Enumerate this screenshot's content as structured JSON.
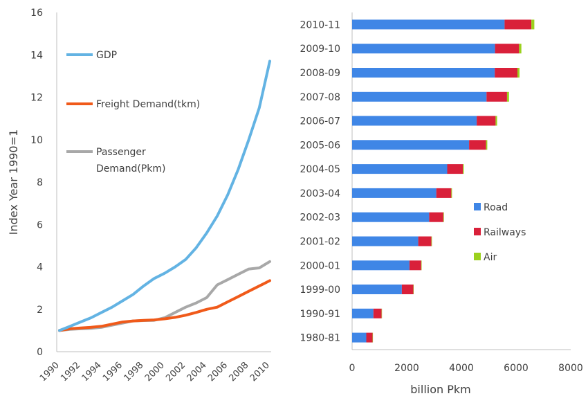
{
  "colors": {
    "gdp": "#63b3e3",
    "freight": "#f05a1a",
    "passenger": "#a8a8a8",
    "road": "#3f86e6",
    "railways": "#d9203a",
    "air": "#9bd11e",
    "axis": "#bfbfbf",
    "text": "#404040"
  },
  "chart_data": [
    {
      "type": "line",
      "ylabel": "Index Year 1990=1",
      "xlabel": "",
      "ylim": [
        0,
        16
      ],
      "xlim": [
        1990,
        2010
      ],
      "yticks": [
        "0",
        "2",
        "4",
        "6",
        "8",
        "10",
        "12",
        "14",
        "16"
      ],
      "xticks": [
        "1990",
        "1992",
        "1994",
        "1996",
        "1998",
        "2000",
        "2002",
        "2004",
        "2006",
        "2008",
        "2010"
      ],
      "legend_position": "upper-left inside",
      "series": [
        {
          "name": "GDP",
          "color_key": "gdp",
          "x": [
            1990,
            1991,
            1992,
            1993,
            1994,
            1995,
            1996,
            1997,
            1998,
            1999,
            2000,
            2001,
            2002,
            2003,
            2004,
            2005,
            2006,
            2007,
            2008,
            2009,
            2010
          ],
          "values": [
            1.0,
            1.2,
            1.4,
            1.6,
            1.85,
            2.1,
            2.4,
            2.7,
            3.1,
            3.45,
            3.7,
            4.0,
            4.35,
            4.9,
            5.6,
            6.4,
            7.4,
            8.6,
            10.0,
            11.5,
            13.7
          ]
        },
        {
          "name": "Freight Demand(tkm)",
          "color_key": "freight",
          "x": [
            1990,
            1991,
            1992,
            1993,
            1994,
            1995,
            1996,
            1997,
            1998,
            1999,
            2000,
            2001,
            2002,
            2003,
            2004,
            2005,
            2006,
            2007,
            2008,
            2009,
            2010
          ],
          "values": [
            1.0,
            1.08,
            1.12,
            1.15,
            1.2,
            1.3,
            1.4,
            1.45,
            1.48,
            1.5,
            1.55,
            1.62,
            1.72,
            1.85,
            2.0,
            2.1,
            2.35,
            2.6,
            2.85,
            3.1,
            3.35
          ]
        },
        {
          "name": "Passenger Demand(Pkm)",
          "color_key": "passenger",
          "x": [
            1990,
            1991,
            1992,
            1993,
            1994,
            1995,
            1996,
            1997,
            1998,
            1999,
            2000,
            2001,
            2002,
            2003,
            2004,
            2005,
            2006,
            2007,
            2008,
            2009,
            2010
          ],
          "values": [
            1.0,
            1.05,
            1.08,
            1.1,
            1.15,
            1.25,
            1.35,
            1.45,
            1.47,
            1.48,
            1.6,
            1.85,
            2.1,
            2.3,
            2.55,
            3.15,
            3.4,
            3.65,
            3.9,
            3.95,
            4.25
          ]
        }
      ]
    },
    {
      "type": "bar",
      "orientation": "horizontal",
      "stacked": true,
      "xlabel": "billion Pkm",
      "ylabel": "",
      "xlim": [
        0,
        8000
      ],
      "xticks": [
        "0",
        "2000",
        "4000",
        "6000",
        "8000"
      ],
      "legend_position": "right, mid-lower inside",
      "categories": [
        "2010-11",
        "2009-10",
        "2008-09",
        "2007-08",
        "2006-07",
        "2005-06",
        "2004-05",
        "2003-04",
        "2002-03",
        "2001-02",
        "2000-01",
        "1999-00",
        "1990-91",
        "1980-81"
      ],
      "series": [
        {
          "name": "Road",
          "color_key": "road",
          "values": [
            5580,
            5230,
            5220,
            4920,
            4560,
            4280,
            3480,
            3080,
            2820,
            2420,
            2100,
            1820,
            780,
            520
          ]
        },
        {
          "name": "Railways",
          "color_key": "railways",
          "values": [
            980,
            880,
            830,
            750,
            690,
            620,
            570,
            550,
            520,
            480,
            430,
            420,
            300,
            230
          ]
        },
        {
          "name": "Air",
          "color_key": "air",
          "values": [
            110,
            85,
            75,
            70,
            55,
            45,
            35,
            25,
            20,
            20,
            15,
            5,
            5,
            5
          ]
        }
      ]
    }
  ]
}
